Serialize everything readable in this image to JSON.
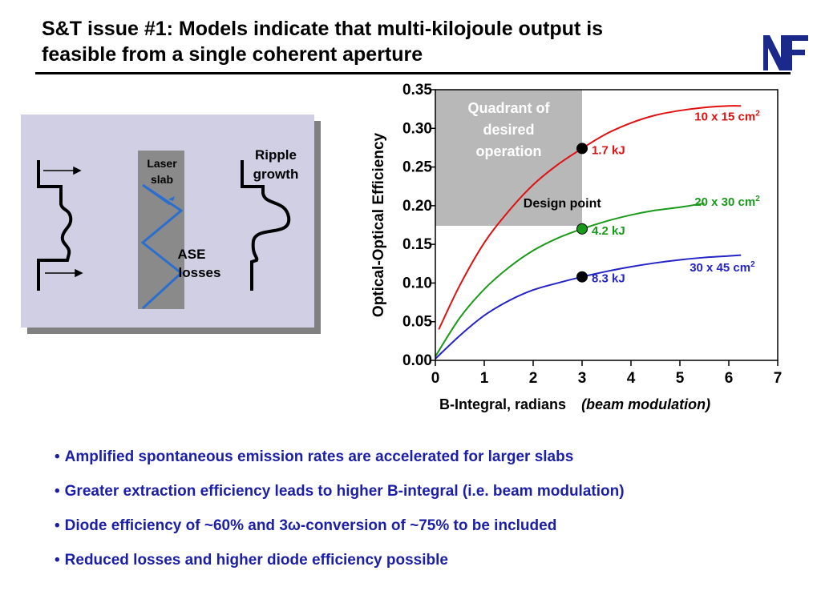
{
  "slide": {
    "title_line1": "S&T issue #1: Models indicate that multi-kilojoule output is",
    "title_line2": "feasible from a single coherent aperture",
    "logo_letters": "NF"
  },
  "diagram": {
    "laser_slab_line1": "Laser",
    "laser_slab_line2": "slab",
    "ripple_line1": "Ripple",
    "ripple_line2": "growth",
    "ase_line1": "ASE",
    "ase_line2": "losses"
  },
  "chart_data": {
    "type": "line",
    "xlabel": "B-Integral, radians",
    "xlabel_note": "(beam modulation)",
    "ylabel": "Optical-Optical Efficiency",
    "xlim": [
      0,
      7
    ],
    "ylim": [
      0,
      0.35
    ],
    "x_ticks": [
      "0",
      "1",
      "2",
      "3",
      "4",
      "5",
      "6",
      "7"
    ],
    "y_ticks": [
      "0.00",
      "0.05",
      "0.10",
      "0.15",
      "0.20",
      "0.25",
      "0.30",
      "0.35"
    ],
    "grid": false,
    "shaded_region": {
      "x": [
        0,
        3
      ],
      "y": [
        0.174,
        0.35
      ],
      "label_line1": "Quadrant of",
      "label_line2": "desired",
      "label_line3": "operation"
    },
    "series": [
      {
        "name": "10 x 15 cm",
        "superscript": "2",
        "color": "#e01010",
        "x": [
          0.07,
          0.5,
          1.0,
          1.5,
          2.0,
          2.5,
          3.0,
          3.5,
          4.0,
          4.5,
          5.0,
          5.5,
          6.0,
          6.25
        ],
        "y": [
          0.04,
          0.097,
          0.152,
          0.193,
          0.227,
          0.253,
          0.274,
          0.293,
          0.307,
          0.317,
          0.323,
          0.327,
          0.329,
          0.329
        ]
      },
      {
        "name": "20 x 30 cm",
        "superscript": "2",
        "color": "#1a9a1a",
        "x": [
          0.0,
          0.5,
          1.0,
          1.5,
          2.0,
          2.5,
          3.0,
          3.5,
          4.0,
          4.5,
          5.0,
          5.5
        ],
        "y": [
          0.005,
          0.055,
          0.092,
          0.12,
          0.142,
          0.158,
          0.17,
          0.18,
          0.188,
          0.194,
          0.198,
          0.203
        ]
      },
      {
        "name": "30 x 45 cm",
        "superscript": "2",
        "color": "#2323c8",
        "x": [
          0.0,
          0.5,
          1.0,
          1.5,
          2.0,
          2.5,
          3.0,
          3.5,
          4.0,
          4.5,
          5.0,
          5.5,
          6.0,
          6.25
        ],
        "y": [
          0.002,
          0.032,
          0.058,
          0.077,
          0.091,
          0.1,
          0.108,
          0.115,
          0.121,
          0.126,
          0.13,
          0.133,
          0.135,
          0.136
        ]
      }
    ],
    "design_points": [
      {
        "x": 3.0,
        "y": 0.274,
        "label": "1.7 kJ",
        "color": "#000000",
        "label_color": "#e01010"
      },
      {
        "x": 3.0,
        "y": 0.17,
        "label": "4.2 kJ",
        "color": "#1a9a1a",
        "label_color": "#1a9a1a"
      },
      {
        "x": 3.0,
        "y": 0.108,
        "label": "8.3 kJ",
        "color": "#000000",
        "label_color": "#2323c8"
      }
    ],
    "design_point_label": "Design point"
  },
  "bullets": [
    "Amplified spontaneous emission rates are accelerated for larger slabs",
    "Greater extraction efficiency leads to higher B-integral (i.e. beam modulation)",
    "Diode efficiency of ~60% and 3ω-conversion of ~75% to be included",
    "Reduced losses and higher diode efficiency possible"
  ],
  "bullet_char": "•"
}
